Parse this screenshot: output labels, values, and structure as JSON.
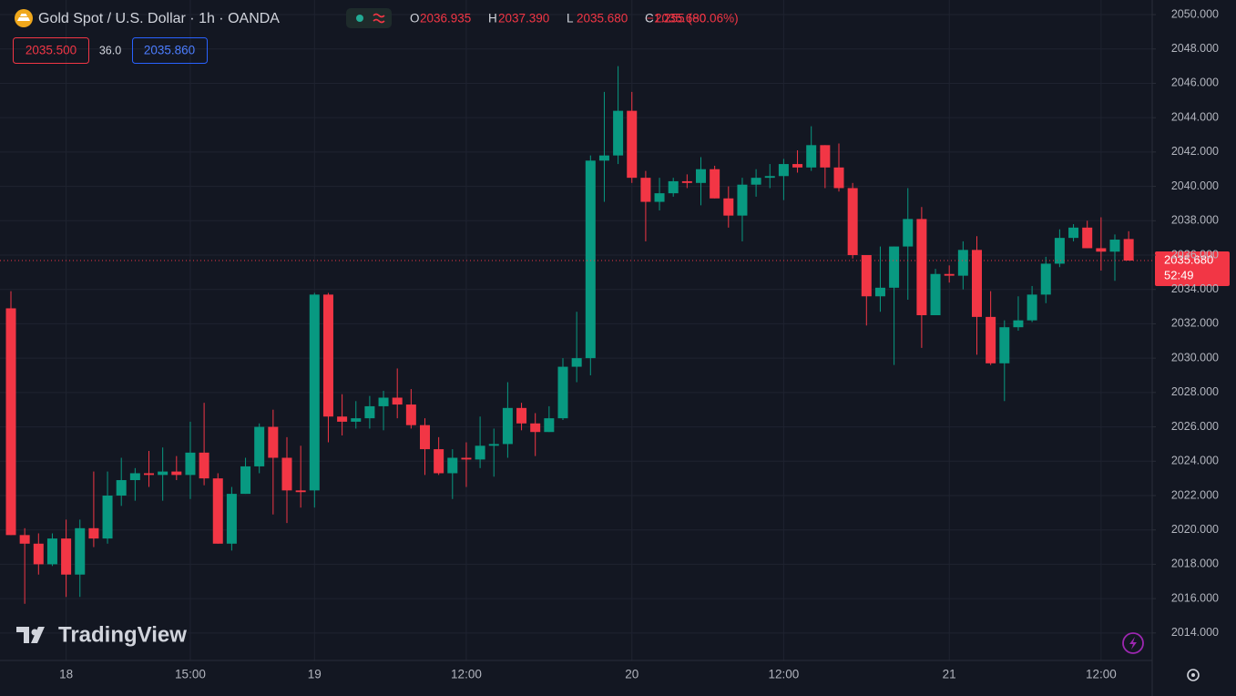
{
  "header": {
    "title": "Gold Spot / U.S. Dollar · 1h · OANDA",
    "ohlc": [
      {
        "name": "O",
        "value": 2036.935,
        "label": "2036.935"
      },
      {
        "name": "H",
        "value": 2037.39,
        "label": "2037.390"
      },
      {
        "name": "L",
        "value": 2035.68,
        "label": "2035.680"
      },
      {
        "name": "C",
        "value": 2035.68,
        "label": "2035.680"
      }
    ],
    "change": "−1.255 (−0.06%)",
    "sell": "2035.500",
    "spread": "36.0",
    "buy": "2035.860",
    "watermark": "TradingView"
  },
  "chart_data": {
    "type": "candlestick",
    "title": "Gold Spot / U.S. Dollar · 1h · OANDA",
    "categories": [
      null,
      null,
      null,
      null,
      "18",
      null,
      null,
      null,
      null,
      null,
      null,
      null,
      null,
      "15:00",
      null,
      null,
      null,
      null,
      null,
      null,
      null,
      null,
      "19",
      null,
      null,
      null,
      null,
      null,
      null,
      null,
      null,
      null,
      null,
      "12:00",
      null,
      null,
      null,
      null,
      null,
      null,
      null,
      null,
      null,
      null,
      null,
      "20",
      null,
      null,
      null,
      null,
      null,
      null,
      null,
      null,
      null,
      null,
      "12:00",
      null,
      null,
      null,
      null,
      null,
      null,
      null,
      null,
      null,
      null,
      null,
      "21",
      null,
      null,
      null,
      null,
      null,
      null,
      null,
      null,
      null,
      null,
      "12:00",
      null,
      null
    ],
    "open": [
      2032.9,
      2019.7,
      2019.2,
      2018.0,
      2019.5,
      2017.4,
      2020.1,
      2019.5,
      2022.0,
      2022.9,
      2023.3,
      2023.2,
      2023.4,
      2023.2,
      2024.5,
      2023.0,
      2019.2,
      2022.1,
      2023.7,
      2026.0,
      2024.2,
      2022.3,
      2022.3,
      2033.7,
      2026.6,
      2026.3,
      2026.5,
      2027.2,
      2027.7,
      2027.3,
      2026.1,
      2024.7,
      2023.3,
      2024.2,
      2024.1,
      2024.9,
      2025.0,
      2027.1,
      2026.2,
      2025.7,
      2026.5,
      2029.5,
      2030.0,
      2041.5,
      2041.8,
      2044.4,
      2040.5,
      2039.1,
      2039.6,
      2040.3,
      2040.2,
      2041.0,
      2039.3,
      2038.3,
      2040.1,
      2040.5,
      2040.6,
      2041.3,
      2041.1,
      2042.4,
      2041.1,
      2039.9,
      2036.0,
      2033.6,
      2034.1,
      2036.5,
      2038.1,
      2032.5,
      2034.9,
      2034.8,
      2036.3,
      2032.4,
      2029.7,
      2031.8,
      2032.2,
      2033.7,
      2035.5,
      2037.0,
      2037.6,
      2036.4,
      2036.2,
      2036.935
    ],
    "high": [
      2033.9,
      2020.1,
      2019.8,
      2019.8,
      2020.6,
      2020.6,
      2023.4,
      2023.4,
      2024.2,
      2023.6,
      2024.6,
      2024.8,
      2024.3,
      2026.3,
      2027.4,
      2023.3,
      2022.5,
      2024.2,
      2026.2,
      2027.0,
      2025.4,
      2024.9,
      2033.8,
      2033.8,
      2027.9,
      2027.5,
      2027.8,
      2028.1,
      2029.4,
      2028.2,
      2026.5,
      2025.4,
      2024.7,
      2025.1,
      2026.6,
      2025.9,
      2028.6,
      2027.4,
      2026.8,
      2027.2,
      2030.0,
      2032.7,
      2041.8,
      2045.5,
      2047.0,
      2045.5,
      2040.9,
      2040.5,
      2040.5,
      2040.7,
      2041.7,
      2041.2,
      2040.0,
      2040.5,
      2041.0,
      2041.3,
      2041.6,
      2042.1,
      2043.5,
      2042.4,
      2042.5,
      2040.2,
      2036.0,
      2036.5,
      2036.5,
      2039.9,
      2038.8,
      2035.2,
      2035.4,
      2036.8,
      2037.1,
      2033.9,
      2032.2,
      2033.6,
      2034.2,
      2035.9,
      2037.5,
      2037.8,
      2038.0,
      2038.2,
      2037.2,
      2037.39
    ],
    "low": [
      2019.7,
      2015.7,
      2017.4,
      2017.9,
      2016.1,
      2016.1,
      2019.0,
      2019.2,
      2021.4,
      2021.7,
      2022.5,
      2021.7,
      2022.9,
      2021.8,
      2022.6,
      2019.2,
      2018.8,
      2022.1,
      2023.3,
      2020.9,
      2020.4,
      2021.3,
      2021.3,
      2025.1,
      2025.5,
      2025.9,
      2025.9,
      2025.8,
      2026.5,
      2025.9,
      2023.2,
      2023.2,
      2021.8,
      2022.5,
      2023.6,
      2023.1,
      2024.2,
      2025.8,
      2024.3,
      2025.7,
      2026.4,
      2028.6,
      2029.0,
      2039.1,
      2041.3,
      2040.2,
      2036.8,
      2038.6,
      2039.4,
      2039.9,
      2038.9,
      2039.3,
      2037.6,
      2036.8,
      2039.4,
      2039.9,
      2039.2,
      2040.8,
      2040.9,
      2039.9,
      2039.7,
      2035.8,
      2031.9,
      2032.7,
      2029.6,
      2033.4,
      2030.6,
      2032.5,
      2034.4,
      2034.0,
      2030.2,
      2029.6,
      2027.5,
      2031.6,
      2032.1,
      2033.2,
      2035.3,
      2036.8,
      2036.4,
      2035.1,
      2034.5,
      2035.68
    ],
    "close": [
      2019.7,
      2019.2,
      2018.0,
      2019.5,
      2017.4,
      2020.1,
      2019.5,
      2022.0,
      2022.9,
      2023.3,
      2023.2,
      2023.4,
      2023.2,
      2024.5,
      2023.0,
      2019.2,
      2022.1,
      2023.7,
      2026.0,
      2024.2,
      2022.3,
      2022.2,
      2033.7,
      2026.6,
      2026.3,
      2026.5,
      2027.2,
      2027.7,
      2027.3,
      2026.1,
      2024.7,
      2023.3,
      2024.2,
      2024.1,
      2024.9,
      2025.0,
      2027.1,
      2026.2,
      2025.7,
      2026.5,
      2029.5,
      2030.0,
      2041.5,
      2041.8,
      2044.4,
      2040.5,
      2039.1,
      2039.6,
      2040.3,
      2040.2,
      2041.0,
      2039.3,
      2038.3,
      2040.1,
      2040.5,
      2040.6,
      2041.3,
      2041.1,
      2042.4,
      2041.1,
      2039.9,
      2036.0,
      2033.6,
      2034.1,
      2036.5,
      2038.1,
      2032.5,
      2034.9,
      2034.8,
      2036.3,
      2032.4,
      2029.7,
      2031.8,
      2032.2,
      2033.7,
      2035.5,
      2037.0,
      2037.6,
      2036.4,
      2036.2,
      2036.9,
      2035.68
    ],
    "up_color": "#089981",
    "down_color": "#f23645",
    "ylim": [
      2012.4,
      2050.85
    ],
    "yticks": [
      {
        "value": 2014,
        "label": "2014.000"
      },
      {
        "value": 2016,
        "label": "2016.000"
      },
      {
        "value": 2018,
        "label": "2018.000"
      },
      {
        "value": 2020,
        "label": "2020.000"
      },
      {
        "value": 2022,
        "label": "2022.000"
      },
      {
        "value": 2024,
        "label": "2024.000"
      },
      {
        "value": 2026,
        "label": "2026.000"
      },
      {
        "value": 2028,
        "label": "2028.000"
      },
      {
        "value": 2030,
        "label": "2030.000"
      },
      {
        "value": 2032,
        "label": "2032.000"
      },
      {
        "value": 2034,
        "label": "2034.000"
      },
      {
        "value": 2036,
        "label": "2036.000"
      },
      {
        "value": 2038,
        "label": "2038.000"
      },
      {
        "value": 2040,
        "label": "2040.000"
      },
      {
        "value": 2042,
        "label": "2042.000"
      },
      {
        "value": 2044,
        "label": "2044.000"
      },
      {
        "value": 2046,
        "label": "2046.000"
      },
      {
        "value": 2048,
        "label": "2048.000"
      },
      {
        "value": 2050,
        "label": "2050.000"
      }
    ],
    "last_price": {
      "value": 2035.68,
      "label": "2035.680"
    },
    "countdown": "52:49",
    "grid": true
  }
}
